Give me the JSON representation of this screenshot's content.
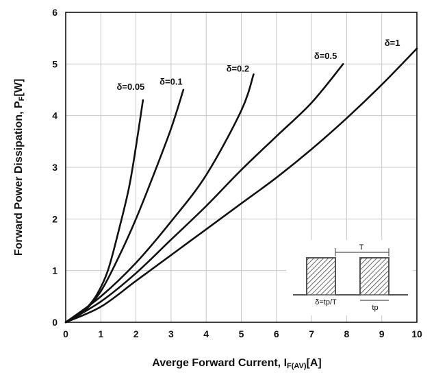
{
  "chart_data": {
    "type": "line",
    "title": "",
    "xlabel": {
      "main": "Averge Forward Current, I",
      "sub": "F(AV)",
      "unit": "[A]"
    },
    "ylabel": {
      "main": "Forward Power Dissipation, P",
      "sub": "F",
      "unit": "[W]"
    },
    "xlim": [
      0,
      10
    ],
    "ylim": [
      0,
      6
    ],
    "xticks": [
      "0",
      "1",
      "2",
      "3",
      "4",
      "5",
      "6",
      "7",
      "8",
      "9",
      "10"
    ],
    "yticks": [
      "0",
      "1",
      "2",
      "3",
      "4",
      "5",
      "6"
    ],
    "grid": true,
    "series": [
      {
        "name": "δ=0.05",
        "points": [
          [
            0,
            0
          ],
          [
            0.3,
            0.12
          ],
          [
            0.6,
            0.28
          ],
          [
            0.9,
            0.55
          ],
          [
            1.2,
            1.0
          ],
          [
            1.5,
            1.75
          ],
          [
            1.8,
            2.6
          ],
          [
            2.0,
            3.4
          ],
          [
            2.2,
            4.3
          ]
        ]
      },
      {
        "name": "δ=0.1",
        "points": [
          [
            0,
            0
          ],
          [
            0.5,
            0.2
          ],
          [
            1.0,
            0.6
          ],
          [
            1.5,
            1.25
          ],
          [
            2.0,
            2.0
          ],
          [
            2.5,
            2.85
          ],
          [
            3.0,
            3.75
          ],
          [
            3.35,
            4.5
          ]
        ]
      },
      {
        "name": "δ=0.2",
        "points": [
          [
            0,
            0
          ],
          [
            1,
            0.5
          ],
          [
            2,
            1.15
          ],
          [
            3,
            1.95
          ],
          [
            4,
            2.85
          ],
          [
            5,
            4.1
          ],
          [
            5.35,
            4.8
          ]
        ]
      },
      {
        "name": "δ=0.5",
        "points": [
          [
            0,
            0
          ],
          [
            1,
            0.4
          ],
          [
            2,
            0.95
          ],
          [
            3,
            1.6
          ],
          [
            4,
            2.25
          ],
          [
            5,
            2.95
          ],
          [
            6,
            3.6
          ],
          [
            7,
            4.25
          ],
          [
            7.9,
            5.0
          ]
        ]
      },
      {
        "name": "δ=1",
        "points": [
          [
            0,
            0
          ],
          [
            1,
            0.3
          ],
          [
            2,
            0.8
          ],
          [
            3,
            1.3
          ],
          [
            4,
            1.8
          ],
          [
            5,
            2.3
          ],
          [
            6,
            2.8
          ],
          [
            7,
            3.35
          ],
          [
            8,
            3.95
          ],
          [
            9,
            4.6
          ],
          [
            10,
            5.3
          ]
        ]
      }
    ],
    "series_labels": [
      {
        "text": "δ=0.05",
        "x": 1.85,
        "y": 4.5
      },
      {
        "text": "δ=0.1",
        "x": 3.0,
        "y": 4.6
      },
      {
        "text": "δ=0.2",
        "x": 4.9,
        "y": 4.85
      },
      {
        "text": "δ=0.5",
        "x": 7.4,
        "y": 5.1
      },
      {
        "text": "δ=1",
        "x": 9.3,
        "y": 5.35
      }
    ],
    "inset": {
      "period_label": "T",
      "pulse_label": "tp",
      "duty_label": "δ=tp/T"
    },
    "colors": {
      "line": "#111111",
      "grid": "#c8c8c8",
      "frame": "#000000",
      "inset_line": "#555555"
    }
  }
}
